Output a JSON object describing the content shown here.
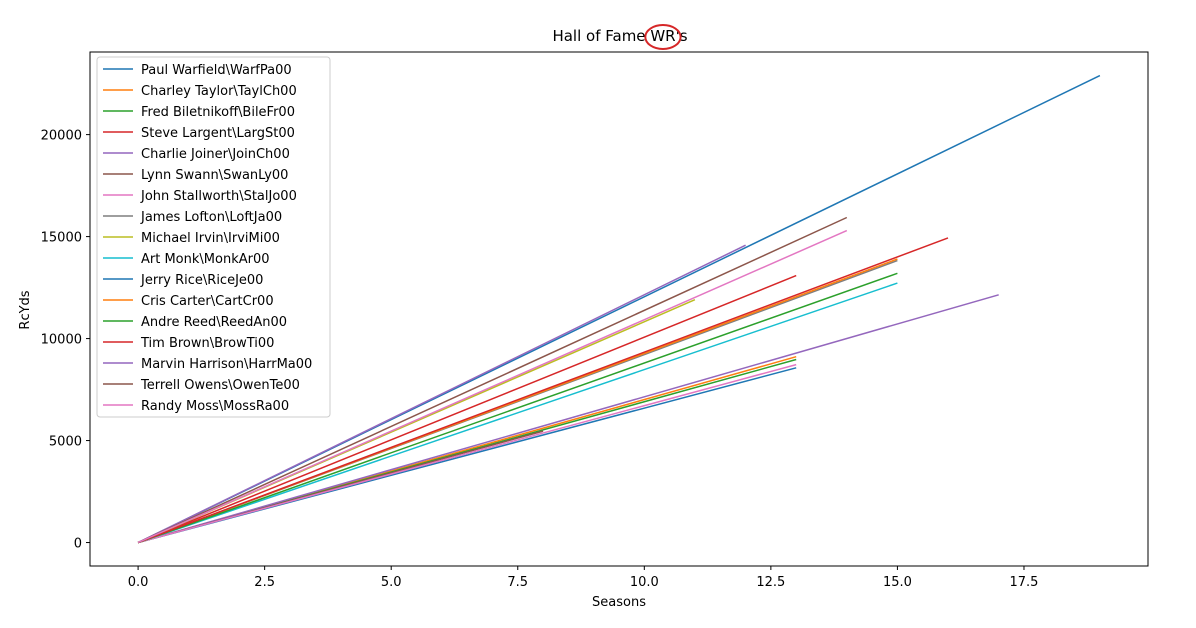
{
  "chart_data": {
    "type": "line",
    "title": "Hall of Fame WR's",
    "title_parts": {
      "before": "Hall of Fame ",
      "circled": "WR",
      "after": "'s"
    },
    "xlabel": "Seasons",
    "ylabel": "RcYds",
    "xlim": [
      -0.95,
      19.95
    ],
    "ylim": [
      -1150,
      24050
    ],
    "xticks": [
      0.0,
      2.5,
      5.0,
      7.5,
      10.0,
      12.5,
      15.0,
      17.5
    ],
    "xtick_labels": [
      "0.0",
      "2.5",
      "5.0",
      "7.5",
      "10.0",
      "12.5",
      "15.0",
      "17.5"
    ],
    "yticks": [
      0,
      5000,
      10000,
      15000,
      20000
    ],
    "ytick_labels": [
      "0",
      "5000",
      "10000",
      "15000",
      "20000"
    ],
    "legend_position": "upper-left",
    "annotation_color": "#d62728",
    "series": [
      {
        "name": "Paul Warfield\\WarfPa00",
        "color": "#1f77b4",
        "x": [
          0,
          13
        ],
        "y": [
          0,
          8565
        ]
      },
      {
        "name": "Charley Taylor\\TaylCh00",
        "color": "#ff7f0e",
        "x": [
          0,
          13
        ],
        "y": [
          0,
          9110
        ]
      },
      {
        "name": "Fred Biletnikoff\\BileFr00",
        "color": "#2ca02c",
        "x": [
          0,
          13
        ],
        "y": [
          0,
          8974
        ]
      },
      {
        "name": "Steve Largent\\LargSt00",
        "color": "#d62728",
        "x": [
          0,
          13
        ],
        "y": [
          0,
          13089
        ]
      },
      {
        "name": "Charlie Joiner\\JoinCh00",
        "color": "#9467bd",
        "x": [
          0,
          17
        ],
        "y": [
          0,
          12146
        ]
      },
      {
        "name": "Lynn Swann\\SwanLy00",
        "color": "#8c564b",
        "x": [
          0,
          8
        ],
        "y": [
          0,
          5462
        ]
      },
      {
        "name": "John Stallworth\\StalJo00",
        "color": "#e377c2",
        "x": [
          0,
          13
        ],
        "y": [
          0,
          8723
        ]
      },
      {
        "name": "James Lofton\\LoftJa00",
        "color": "#7f7f7f",
        "x": [
          0,
          15
        ],
        "y": [
          0,
          13821
        ]
      },
      {
        "name": "Michael Irvin\\IrviMi00",
        "color": "#bcbd22",
        "x": [
          0,
          11
        ],
        "y": [
          0,
          11904
        ]
      },
      {
        "name": "Art Monk\\MonkAr00",
        "color": "#17becf",
        "x": [
          0,
          15
        ],
        "y": [
          0,
          12721
        ]
      },
      {
        "name": "Jerry Rice\\RiceJe00",
        "color": "#1f77b4",
        "x": [
          0,
          19
        ],
        "y": [
          0,
          22895
        ]
      },
      {
        "name": "Cris Carter\\CartCr00",
        "color": "#ff7f0e",
        "x": [
          0,
          15
        ],
        "y": [
          0,
          13899
        ]
      },
      {
        "name": "Andre Reed\\ReedAn00",
        "color": "#2ca02c",
        "x": [
          0,
          15
        ],
        "y": [
          0,
          13198
        ]
      },
      {
        "name": "Tim Brown\\BrowTi00",
        "color": "#d62728",
        "x": [
          0,
          16
        ],
        "y": [
          0,
          14934
        ]
      },
      {
        "name": "Marvin Harrison\\HarrMa00",
        "color": "#9467bd",
        "x": [
          0,
          12
        ],
        "y": [
          0,
          14580
        ]
      },
      {
        "name": "Terrell Owens\\OwenTe00",
        "color": "#8c564b",
        "x": [
          0,
          14
        ],
        "y": [
          0,
          15934
        ]
      },
      {
        "name": "Randy Moss\\MossRa00",
        "color": "#e377c2",
        "x": [
          0,
          14
        ],
        "y": [
          0,
          15292
        ]
      }
    ]
  }
}
